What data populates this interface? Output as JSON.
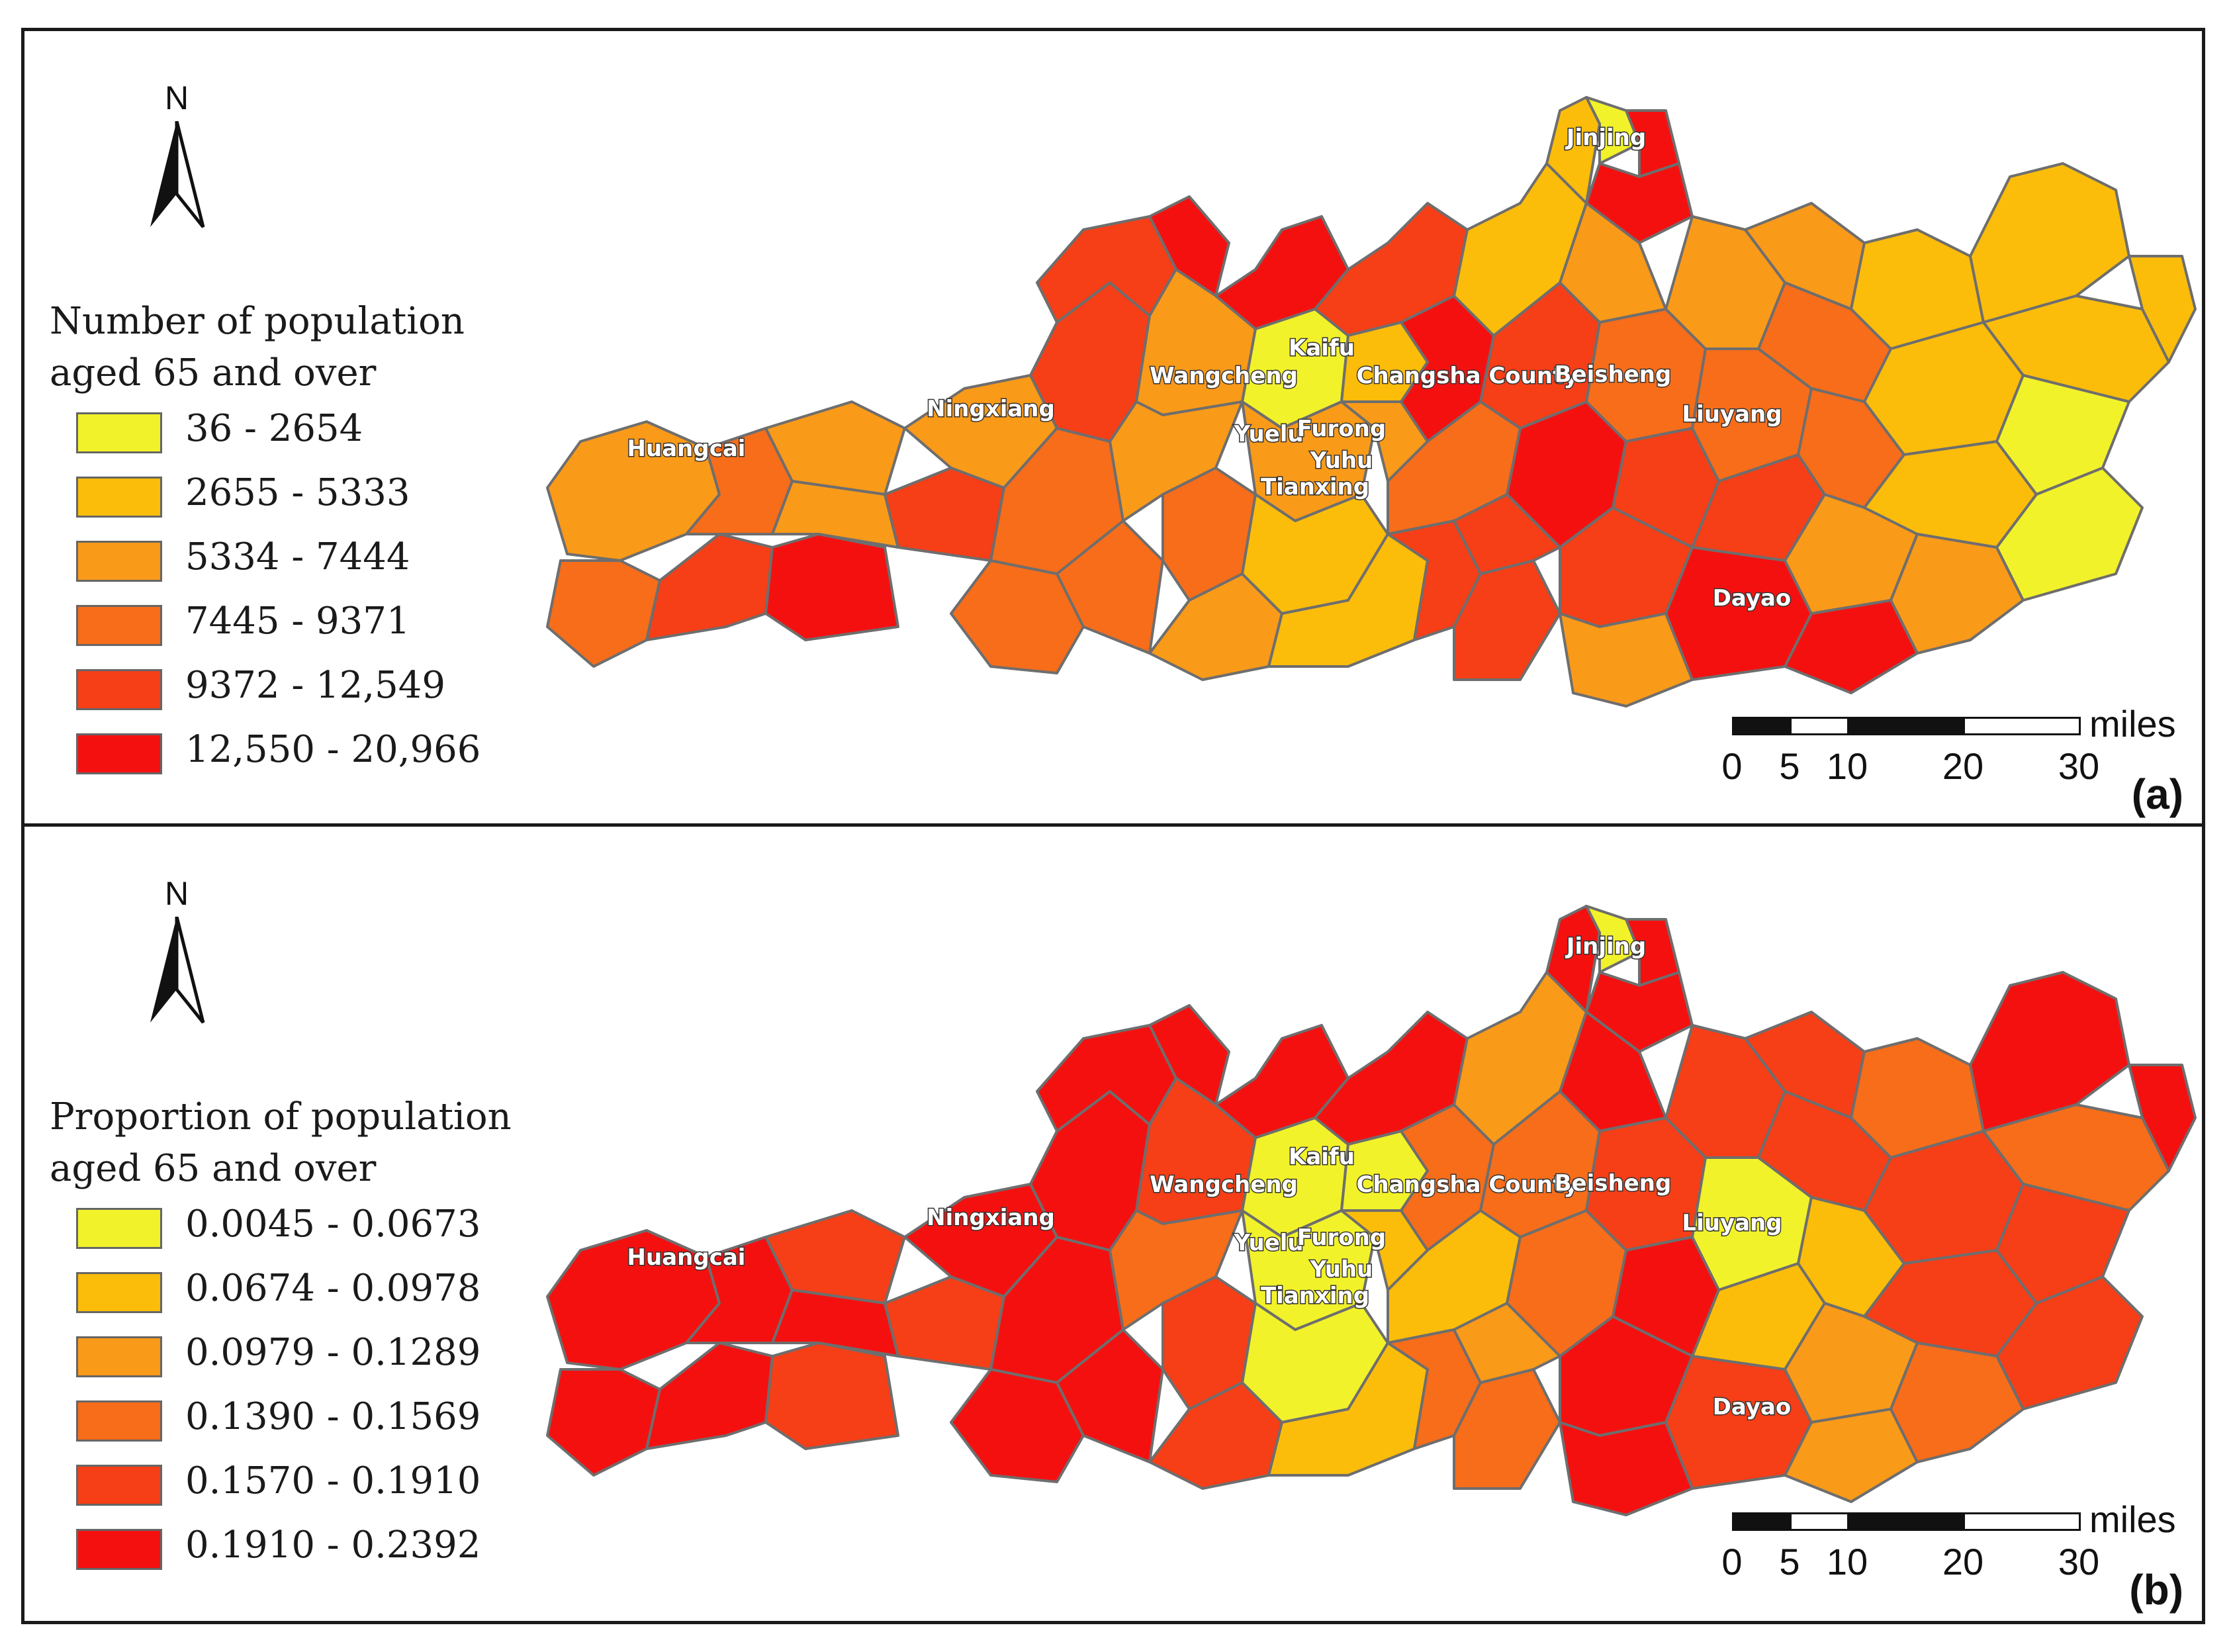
{
  "panels": [
    {
      "id": "a",
      "panel_label": "(a)",
      "legend_title_line1": "Number of population",
      "legend_title_line2": "aged 65 and over",
      "legend": [
        {
          "label": "36 - 2654",
          "color": "#f2f22a"
        },
        {
          "label": "2655 - 5333",
          "color": "#fbbd0a"
        },
        {
          "label": "5334 - 7444",
          "color": "#fa9a19"
        },
        {
          "label": "7445 - 9371",
          "color": "#f76d1a"
        },
        {
          "label": "9372 - 12,549",
          "color": "#f63e17"
        },
        {
          "label": "12,550 - 20,966",
          "color": "#f51010"
        }
      ]
    },
    {
      "id": "b",
      "panel_label": "(b)",
      "legend_title_line1": "Proportion of population",
      "legend_title_line2": "aged 65 and over",
      "legend": [
        {
          "label": "0.0045 - 0.0673",
          "color": "#f2f22a"
        },
        {
          "label": "0.0674 - 0.0978",
          "color": "#fbbd0a"
        },
        {
          "label": "0.0979 - 0.1289",
          "color": "#fa9a19"
        },
        {
          "label": "0.1390 - 0.1569",
          "color": "#f76d1a"
        },
        {
          "label": "0.1570 - 0.1910",
          "color": "#f63e17"
        },
        {
          "label": "0.1910 - 0.2392",
          "color": "#f51010"
        }
      ]
    }
  ],
  "north_label": "N",
  "scalebar": {
    "unit": "miles",
    "ticks": [
      "0",
      "5",
      "10",
      "20",
      "30"
    ],
    "tick_values": [
      0,
      5,
      10,
      20,
      30
    ]
  },
  "places": [
    "Jinjing",
    "Kaifu",
    "Wangcheng",
    "Changsha County",
    "Beisheng",
    "Ningxiang",
    "Huangcai",
    "Liuyang",
    "Yuelu",
    "Furong",
    "Yuhu",
    "Tianxing",
    "Dayao"
  ],
  "colors": {
    "border": "#6e6e6e",
    "frame": "#1a1a1a"
  }
}
